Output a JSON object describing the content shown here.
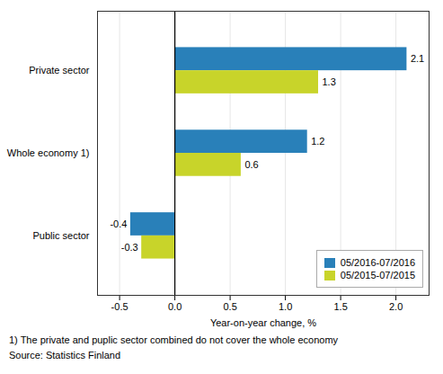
{
  "chart_data": {
    "type": "bar",
    "orientation": "horizontal",
    "categories": [
      "Public sector",
      "Whole economy 1)",
      "Private sector"
    ],
    "series": [
      {
        "name": "05/2016-07/2016",
        "color": "#2980b9",
        "values": [
          -0.4,
          1.2,
          2.1
        ]
      },
      {
        "name": "05/2015-07/2015",
        "color": "#c8d42a",
        "values": [
          -0.3,
          0.6,
          1.3
        ]
      }
    ],
    "xlabel": "Year-on-year change, %",
    "xlim": [
      -0.7,
      2.3
    ],
    "xticks": [
      -0.5,
      {
        "value": 0,
        "label": "0.0"
      },
      0.5,
      {
        "value": 1,
        "label": "1.0"
      },
      1.5,
      {
        "value": 2,
        "label": "2.0"
      }
    ],
    "grid": true,
    "legend": "lower right",
    "data_labels": true,
    "annotations": [
      "1) The private and puplic sector combined do not cover the whole economy",
      "Source: Statistics Finland"
    ]
  }
}
